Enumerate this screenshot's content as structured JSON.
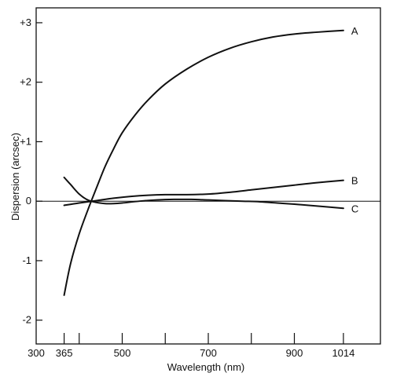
{
  "chart_data": {
    "type": "line",
    "title": "",
    "xlabel": "Wavelength (nm)",
    "ylabel": "Dispersion (arcsec)",
    "xlim": [
      300,
      1100
    ],
    "ylim": [
      -2.4,
      3.25
    ],
    "grid": false,
    "x_tick_labels": [
      {
        "value": 300,
        "label": "300"
      },
      {
        "value": 365,
        "label": "365"
      },
      {
        "value": 500,
        "label": "500"
      },
      {
        "value": 700,
        "label": "700"
      },
      {
        "value": 900,
        "label": "900"
      },
      {
        "value": 1014,
        "label": "1014"
      }
    ],
    "x_minor_ticks": [
      365,
      400,
      500,
      600,
      700,
      800,
      900,
      1014
    ],
    "y_ticks": [
      {
        "value": 3,
        "label": "+3"
      },
      {
        "value": 2,
        "label": "+2"
      },
      {
        "value": 1,
        "label": "+1"
      },
      {
        "value": 0,
        "label": "0"
      },
      {
        "value": -1,
        "label": "-1"
      },
      {
        "value": -2,
        "label": "-2"
      }
    ],
    "zero_line": true,
    "series": [
      {
        "name": "A",
        "color": "#111111",
        "x": [
          365,
          380,
          400,
          420,
          440,
          460,
          480,
          500,
          530,
          560,
          600,
          650,
          700,
          750,
          800,
          850,
          900,
          950,
          1014
        ],
        "y": [
          -1.58,
          -1.05,
          -0.55,
          -0.15,
          0.22,
          0.58,
          0.88,
          1.15,
          1.45,
          1.7,
          1.97,
          2.22,
          2.42,
          2.57,
          2.68,
          2.76,
          2.81,
          2.84,
          2.87
        ]
      },
      {
        "name": "B",
        "color": "#111111",
        "x": [
          365,
          400,
          440,
          480,
          520,
          560,
          600,
          650,
          700,
          750,
          800,
          850,
          900,
          950,
          1014
        ],
        "y": [
          -0.07,
          -0.03,
          0.01,
          0.05,
          0.08,
          0.1,
          0.11,
          0.11,
          0.12,
          0.15,
          0.19,
          0.23,
          0.27,
          0.31,
          0.35
        ]
      },
      {
        "name": "C",
        "color": "#111111",
        "x": [
          365,
          380,
          400,
          420,
          440,
          460,
          480,
          500,
          540,
          580,
          620,
          660,
          700,
          740,
          780,
          820,
          860,
          900,
          950,
          1014
        ],
        "y": [
          0.4,
          0.28,
          0.12,
          0.02,
          -0.02,
          -0.04,
          -0.04,
          -0.03,
          0.0,
          0.02,
          0.03,
          0.03,
          0.02,
          0.01,
          0.0,
          -0.01,
          -0.03,
          -0.05,
          -0.08,
          -0.12
        ]
      }
    ]
  }
}
